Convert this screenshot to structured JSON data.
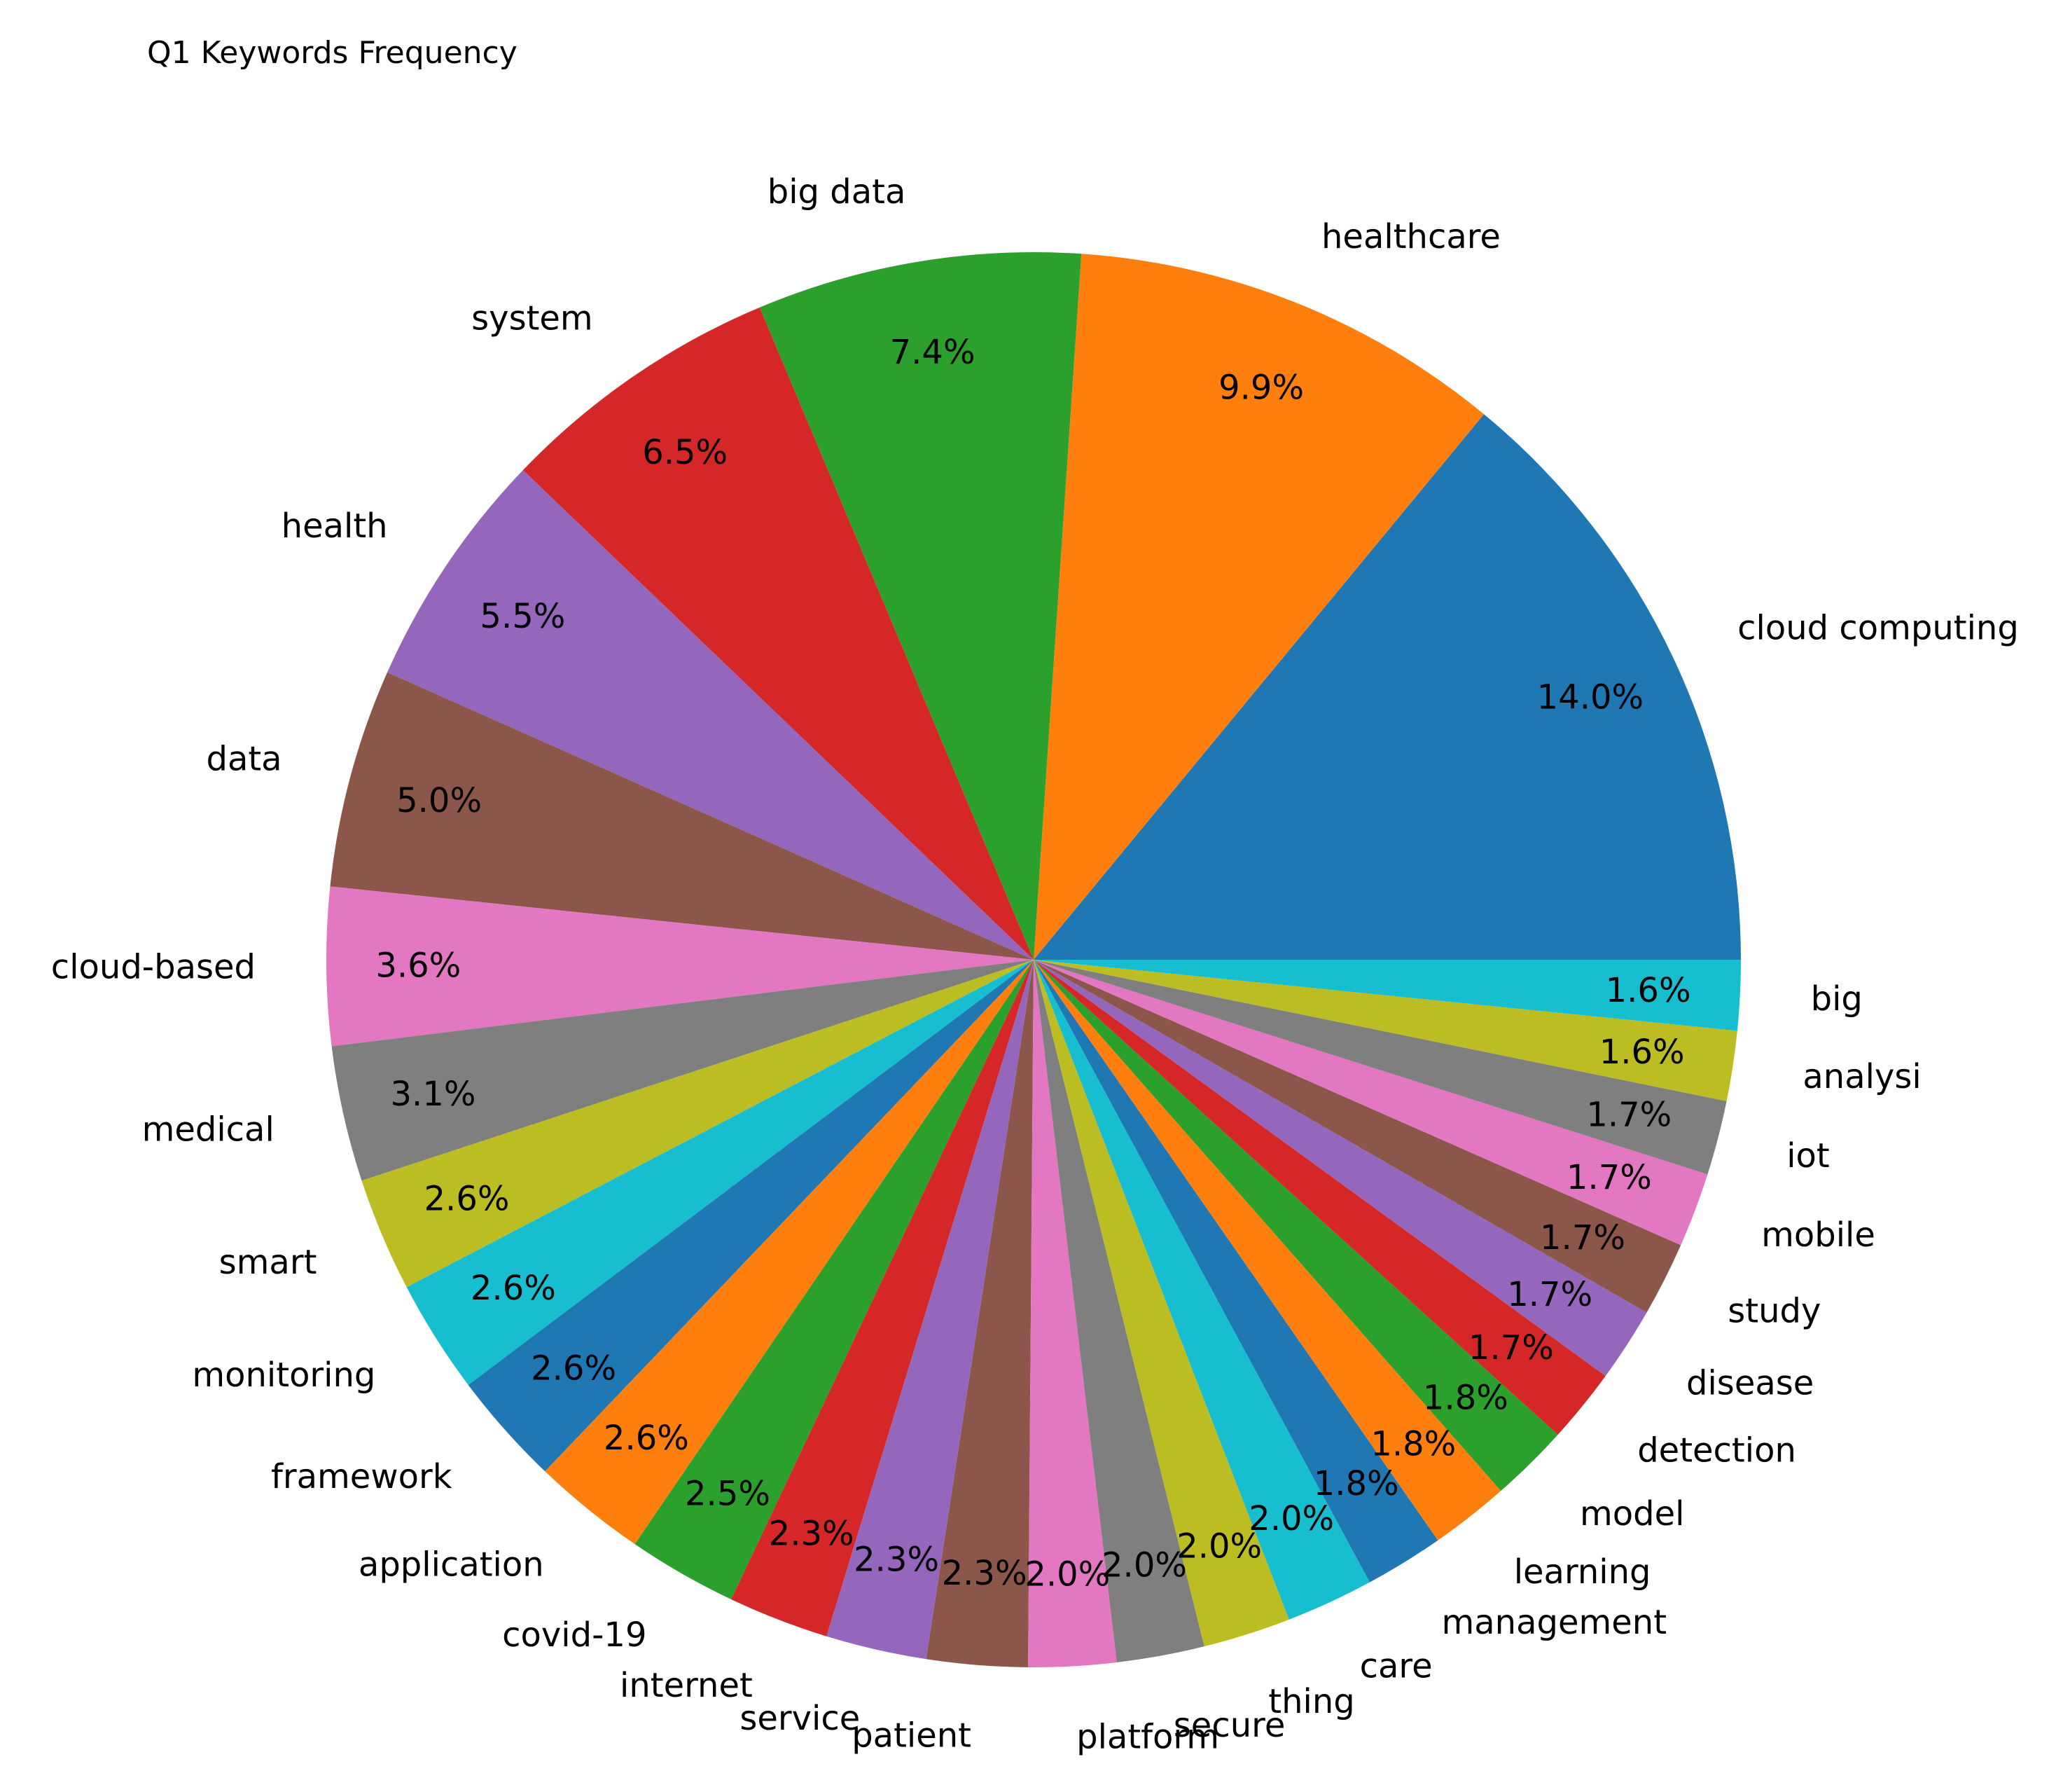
{
  "chart_data": {
    "type": "pie",
    "title": "Q1 Keywords Frequency",
    "start_angle_deg": 0,
    "direction": "counterclockwise",
    "labels": [
      "cloud computing",
      "healthcare",
      "big data",
      "system",
      "health",
      "data",
      "cloud-based",
      "medical",
      "smart",
      "monitoring",
      "framework",
      "application",
      "covid-19",
      "internet",
      "service",
      "patient",
      "platform",
      "secure",
      "thing",
      "care",
      "management",
      "learning",
      "model",
      "detection",
      "disease",
      "study",
      "mobile",
      "iot",
      "analysi",
      "big"
    ],
    "values": [
      14.0,
      9.9,
      7.4,
      6.5,
      5.5,
      5.0,
      3.6,
      3.1,
      2.6,
      2.6,
      2.6,
      2.6,
      2.5,
      2.3,
      2.3,
      2.3,
      2.0,
      2.0,
      2.0,
      2.0,
      1.8,
      1.8,
      1.8,
      1.7,
      1.7,
      1.7,
      1.7,
      1.7,
      1.6,
      1.6
    ],
    "pct_labels": [
      "14.0%",
      "9.9%",
      "7.4%",
      "6.5%",
      "5.5%",
      "5.0%",
      "3.6%",
      "3.1%",
      "2.6%",
      "2.6%",
      "2.6%",
      "2.6%",
      "2.5%",
      "2.3%",
      "2.3%",
      "2.3%",
      "2.0%",
      "2.0%",
      "2.0%",
      "2.0%",
      "1.8%",
      "1.8%",
      "1.8%",
      "1.7%",
      "1.7%",
      "1.7%",
      "1.7%",
      "1.7%",
      "1.6%",
      "1.6%"
    ],
    "colors": [
      "#1f77b4",
      "#ff7f0e",
      "#2ca02c",
      "#d62728",
      "#9467bd",
      "#8c564b",
      "#e377c2",
      "#7f7f7f",
      "#bcbd22",
      "#17becf"
    ],
    "legend": "none"
  }
}
